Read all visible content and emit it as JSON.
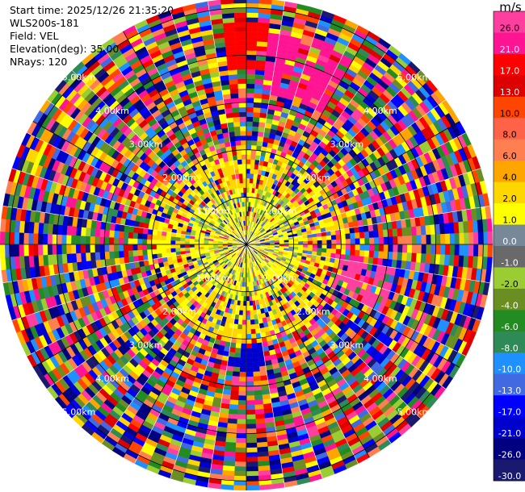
{
  "header": {
    "start_time": "Start time: 2025/12/26 21:35:20",
    "instrument": "WLS200s-181",
    "field": "Field: VEL",
    "elevation": "Elevation(deg): 35.00",
    "nrays": "NRays: 120"
  },
  "colorbar": {
    "unit": "m/s",
    "ticks": [
      "26.0",
      "21.0",
      "17.0",
      "13.0",
      "10.0",
      "8.0",
      "6.0",
      "4.0",
      "2.0",
      "1.0",
      "0.0",
      "-1.0",
      "-2.0",
      "-4.0",
      "-6.0",
      "-8.0",
      "-10.0",
      "-13.0",
      "-17.0",
      "-21.0",
      "-26.0",
      "-30.0"
    ],
    "colors": [
      "#ff3fa0",
      "#ff1493",
      "#ff0000",
      "#dc0000",
      "#ff4500",
      "#ff6347",
      "#ff7f50",
      "#ffa500",
      "#ffd700",
      "#ffff00",
      "#778899",
      "#696969",
      "#9acd32",
      "#6b8e23",
      "#228b22",
      "#2e8b57",
      "#1e90ff",
      "#4169e1",
      "#0000ff",
      "#0000cd",
      "#000080",
      "#191970"
    ]
  },
  "chart_data": {
    "type": "heatmap",
    "projection": "polar PPI",
    "field": "VEL",
    "units": "m/s",
    "nrays": 120,
    "elevation_deg": 35.0,
    "range_rings_km": [
      1,
      2,
      3,
      4,
      5
    ],
    "ring_labels": [
      "1.00km",
      "2.00km",
      "3.00km",
      "4.00km",
      "5.00km"
    ],
    "max_range_km": 5.2,
    "color_levels": [
      -30,
      -26,
      -21,
      -17,
      -13,
      -10,
      -8,
      -6,
      -4,
      -2,
      -1,
      0,
      1,
      2,
      4,
      6,
      8,
      10,
      13,
      17,
      21,
      26
    ],
    "pattern_note_colors": {
      "inner": "#ffff00",
      "inner_alt": "#9acd32"
    }
  }
}
